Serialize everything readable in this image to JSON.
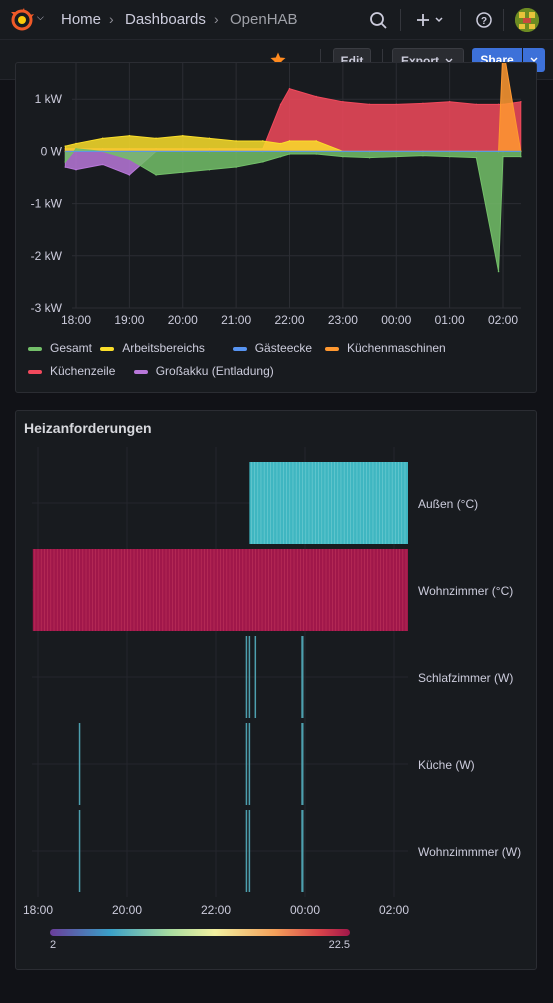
{
  "breadcrumb": {
    "home": "Home",
    "dashboards": "Dashboards",
    "current": "OpenHAB"
  },
  "toolbar": {
    "edit": "Edit",
    "export": "Export",
    "share": "Share"
  },
  "colors": {
    "accent": "#3d71d9",
    "star": "#ff8a1f"
  },
  "chart_data": [
    {
      "type": "line",
      "title": "",
      "xlabel": "",
      "ylabel": "",
      "x_ticks": [
        "18:00",
        "19:00",
        "20:00",
        "21:00",
        "22:00",
        "23:00",
        "00:00",
        "01:00",
        "02:00"
      ],
      "y_ticks": [
        "1 kW",
        "0 W",
        "-1 kW",
        "-2 kW",
        "-3 kW"
      ],
      "ylim": [
        -3,
        2
      ],
      "y_unit": "kW",
      "x": [
        "17:48",
        "18:00",
        "18:30",
        "19:00",
        "19:30",
        "20:00",
        "20:30",
        "21:00",
        "21:30",
        "21:50",
        "22:00",
        "22:30",
        "23:00",
        "23:30",
        "00:00",
        "00:30",
        "01:00",
        "01:30",
        "01:55",
        "02:00",
        "02:20"
      ],
      "series": [
        {
          "name": "Gesamt",
          "color": "#73bf69",
          "values": [
            -0.2,
            0.05,
            0.0,
            -0.15,
            -0.45,
            -0.4,
            -0.35,
            -0.3,
            -0.2,
            -0.1,
            -0.05,
            -0.05,
            -0.1,
            -0.12,
            -0.1,
            -0.08,
            -0.1,
            -0.12,
            -2.3,
            -0.1,
            -0.1
          ]
        },
        {
          "name": "Arbeitsbereichs",
          "color": "#fade2a",
          "values": [
            0.1,
            0.15,
            0.25,
            0.3,
            0.25,
            0.3,
            0.25,
            0.2,
            0.2,
            0.15,
            0.2,
            0.2,
            0,
            0,
            0,
            0,
            0,
            0,
            0,
            0,
            0
          ]
        },
        {
          "name": "Gästeecke",
          "color": "#5794f2",
          "values": [
            0,
            0,
            0,
            0,
            0,
            0,
            0,
            0,
            0,
            0,
            0,
            0,
            0,
            0,
            0,
            0,
            0,
            0,
            0,
            0,
            0
          ]
        },
        {
          "name": "Küchenmaschinen",
          "color": "#ff9830",
          "values": [
            0,
            0,
            0,
            0,
            0,
            0,
            0,
            0,
            0,
            0,
            0,
            0,
            0,
            0,
            0,
            0,
            0,
            0,
            0,
            2.0,
            0
          ]
        },
        {
          "name": "Küchenzeile",
          "color": "#f2495c",
          "values": [
            0.05,
            0.05,
            0.05,
            0.05,
            0.05,
            0.05,
            0.05,
            0.05,
            0.05,
            0.9,
            1.2,
            1.05,
            0.95,
            0.9,
            0.9,
            0.92,
            0.95,
            0.9,
            0.9,
            0.9,
            0.95
          ]
        },
        {
          "name": "Großakku (Entladung)",
          "color": "#b877d9",
          "values": [
            -0.3,
            -0.35,
            -0.25,
            -0.45,
            0,
            0,
            0,
            0,
            0,
            0,
            0,
            0,
            0,
            0,
            0,
            0,
            0,
            0,
            0,
            0,
            0
          ]
        }
      ],
      "legend_placement": "bottom",
      "grid": true
    },
    {
      "type": "heatmap",
      "title": "Heizanforderungen",
      "xlabel": "",
      "ylabel": "",
      "x_ticks": [
        "18:00",
        "20:00",
        "22:00",
        "00:00",
        "02:00"
      ],
      "rows": [
        "Außen (°C)",
        "Wohnzimmer (°C)",
        "Schlafzimmer (W)",
        "Küche (W)",
        "Wohnzimmmer (W)"
      ],
      "row_activity": [
        [
          [
            "22:45",
            "02:20"
          ]
        ],
        [
          [
            "17:53",
            "02:20"
          ]
        ],
        [
          [
            "22:40",
            "22:42"
          ],
          [
            "22:44",
            "22:45"
          ],
          [
            "22:52",
            "22:53"
          ],
          [
            "23:55",
            "23:58"
          ]
        ],
        [
          [
            "18:55",
            "18:57"
          ],
          [
            "22:40",
            "22:42"
          ],
          [
            "22:44",
            "22:46"
          ],
          [
            "23:55",
            "23:58"
          ]
        ],
        [
          [
            "18:55",
            "18:57"
          ],
          [
            "22:40",
            "22:42"
          ],
          [
            "22:44",
            "22:46"
          ],
          [
            "23:55",
            "23:58"
          ]
        ]
      ],
      "scale": {
        "min": "2",
        "max": "22.5"
      },
      "grid": true
    }
  ]
}
